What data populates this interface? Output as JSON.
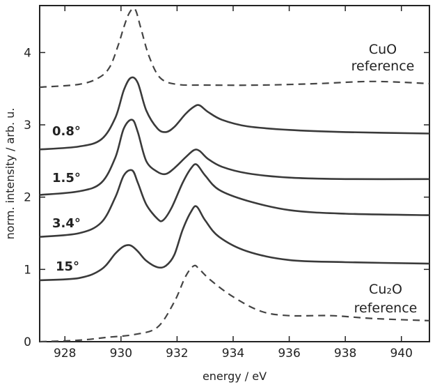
{
  "chart_data": {
    "type": "line",
    "xlabel": "energy / eV",
    "ylabel": "norm. intensity / arb. u.",
    "xlim": [
      927.1,
      941.0
    ],
    "ylim": [
      0.0,
      4.65
    ],
    "xticks": [
      "928",
      "930",
      "932",
      "934",
      "936",
      "938",
      "940"
    ],
    "yticks": [
      "0",
      "1",
      "2",
      "3",
      "4"
    ],
    "series": [
      {
        "name": "CuO reference",
        "style": "dashed",
        "label_lines": [
          "CuO",
          "reference"
        ],
        "x": [
          927.1,
          928.5,
          929.2,
          929.6,
          929.9,
          930.1,
          930.3,
          930.5,
          930.7,
          931.0,
          931.4,
          932.0,
          933.0,
          935.0,
          937.0,
          939.0,
          941.0
        ],
        "y": [
          3.52,
          3.56,
          3.65,
          3.8,
          4.1,
          4.35,
          4.55,
          4.6,
          4.35,
          3.95,
          3.65,
          3.56,
          3.55,
          3.55,
          3.57,
          3.6,
          3.57
        ]
      },
      {
        "name": "0.8°",
        "style": "solid",
        "label_lines": [
          "0.8°"
        ],
        "x": [
          927.1,
          928.5,
          929.3,
          929.8,
          930.1,
          930.35,
          930.6,
          930.9,
          931.3,
          931.6,
          931.9,
          932.3,
          932.6,
          932.8,
          933.1,
          933.6,
          934.5,
          936.0,
          938.0,
          941.0
        ],
        "y": [
          2.66,
          2.7,
          2.8,
          3.1,
          3.48,
          3.65,
          3.58,
          3.2,
          2.95,
          2.9,
          2.97,
          3.15,
          3.25,
          3.27,
          3.18,
          3.07,
          2.98,
          2.93,
          2.9,
          2.88
        ]
      },
      {
        "name": "1.5°",
        "style": "solid",
        "label_lines": [
          "1.5°"
        ],
        "x": [
          927.1,
          928.5,
          929.3,
          929.8,
          930.1,
          930.4,
          930.6,
          930.9,
          931.3,
          931.6,
          931.9,
          932.3,
          932.6,
          932.8,
          933.1,
          933.6,
          934.5,
          936.0,
          938.0,
          941.0
        ],
        "y": [
          2.03,
          2.08,
          2.2,
          2.55,
          2.95,
          3.07,
          2.9,
          2.5,
          2.35,
          2.32,
          2.4,
          2.55,
          2.65,
          2.64,
          2.53,
          2.42,
          2.33,
          2.27,
          2.25,
          2.25
        ]
      },
      {
        "name": "3.4°",
        "style": "solid",
        "label_lines": [
          "3.4°"
        ],
        "x": [
          927.1,
          928.5,
          929.3,
          929.8,
          930.1,
          930.4,
          930.6,
          930.9,
          931.3,
          931.5,
          931.8,
          932.2,
          932.5,
          932.7,
          933.0,
          933.5,
          934.5,
          936.0,
          938.0,
          941.0
        ],
        "y": [
          1.45,
          1.5,
          1.65,
          2.0,
          2.3,
          2.37,
          2.2,
          1.9,
          1.7,
          1.68,
          1.85,
          2.2,
          2.4,
          2.45,
          2.3,
          2.1,
          1.95,
          1.82,
          1.77,
          1.75
        ]
      },
      {
        "name": "15°",
        "style": "solid",
        "label_lines": [
          "15°"
        ],
        "x": [
          927.1,
          928.5,
          929.3,
          929.8,
          930.1,
          930.35,
          930.6,
          930.9,
          931.3,
          931.6,
          931.9,
          932.2,
          932.5,
          932.7,
          933.0,
          933.5,
          934.5,
          936.0,
          938.0,
          941.0
        ],
        "y": [
          0.85,
          0.88,
          1.0,
          1.22,
          1.32,
          1.33,
          1.25,
          1.12,
          1.03,
          1.05,
          1.2,
          1.55,
          1.8,
          1.87,
          1.68,
          1.45,
          1.25,
          1.13,
          1.1,
          1.08
        ]
      },
      {
        "name": "Cu₂O reference",
        "style": "dashed",
        "label_lines": [
          "Cu₂O",
          "reference"
        ],
        "x": [
          927.1,
          928.5,
          929.5,
          930.5,
          931.3,
          931.9,
          932.3,
          932.6,
          932.8,
          933.2,
          934.0,
          935.0,
          936.0,
          937.5,
          939.0,
          941.0
        ],
        "y": [
          0.0,
          0.02,
          0.06,
          0.1,
          0.2,
          0.55,
          0.9,
          1.05,
          1.0,
          0.85,
          0.62,
          0.42,
          0.36,
          0.36,
          0.32,
          0.29
        ]
      }
    ]
  }
}
